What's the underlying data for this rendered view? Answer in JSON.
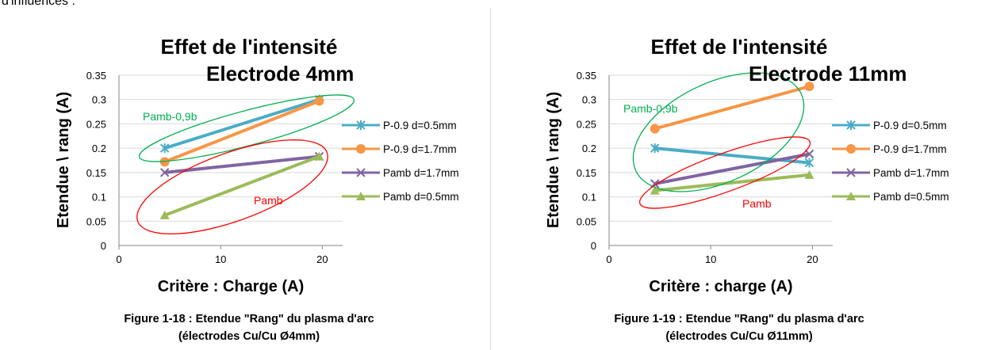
{
  "header_snippet": "d'influences :",
  "chart_data": [
    {
      "type": "line",
      "title": "Effet de l'intensité",
      "subtitle": "Electrode 4mm",
      "xlabel": "Critère : Charge (A)",
      "ylabel": "Etendue \\ rang (A)",
      "xlim": [
        0,
        22
      ],
      "ylim": [
        0,
        0.35
      ],
      "xticks": [
        "0",
        "10",
        "20"
      ],
      "yticks": [
        "0",
        "0.05",
        "0.1",
        "0.15",
        "0.2",
        "0.25",
        "0.3",
        "0.35"
      ],
      "grid": true,
      "legend_position": "right",
      "series": [
        {
          "name": "P-0.9 d=0.5mm",
          "color": "#4BACC6",
          "marker": "star",
          "x": [
            4.5,
            19.7
          ],
          "y": [
            0.2,
            0.3
          ]
        },
        {
          "name": "P-0.9 d=1.7mm",
          "color": "#F79646",
          "marker": "circle",
          "x": [
            4.5,
            19.7
          ],
          "y": [
            0.172,
            0.297
          ]
        },
        {
          "name": "Pamb d=1.7mm",
          "color": "#8064A2",
          "marker": "x",
          "x": [
            4.5,
            19.7
          ],
          "y": [
            0.15,
            0.183
          ]
        },
        {
          "name": "Pamb d=0.5mm",
          "color": "#9BBB59",
          "marker": "triangle",
          "x": [
            4.5,
            19.7
          ],
          "y": [
            0.062,
            0.183
          ]
        }
      ],
      "annotations": [
        {
          "text": "Pamb-0,9b",
          "color": "#00B050"
        },
        {
          "text": "Pamb",
          "color": "#FF0000"
        }
      ],
      "caption_line1": "Figure 1-18 : Etendue \"Rang\" du plasma d'arc",
      "caption_line2": "(électrodes Cu/Cu Ø4mm)"
    },
    {
      "type": "line",
      "title": "Effet de l'intensité",
      "subtitle": "Electrode 11mm",
      "xlabel": "Critère : charge (A)",
      "ylabel": "Etendue \\ rang (A)",
      "xlim": [
        0,
        22
      ],
      "ylim": [
        0,
        0.35
      ],
      "xticks": [
        "0",
        "10",
        "20"
      ],
      "yticks": [
        "0",
        "0.05",
        "0.1",
        "0.15",
        "0.2",
        "0.25",
        "0.3",
        "0.35"
      ],
      "grid": true,
      "legend_position": "right",
      "series": [
        {
          "name": "P-0.9 d=0.5mm",
          "color": "#4BACC6",
          "marker": "star",
          "x": [
            4.5,
            19.7
          ],
          "y": [
            0.2,
            0.17
          ]
        },
        {
          "name": "P-0.9 d=1.7mm",
          "color": "#F79646",
          "marker": "circle",
          "x": [
            4.5,
            19.7
          ],
          "y": [
            0.24,
            0.327
          ]
        },
        {
          "name": "Pamb d=1.7mm",
          "color": "#8064A2",
          "marker": "x",
          "x": [
            4.5,
            19.7
          ],
          "y": [
            0.127,
            0.188
          ]
        },
        {
          "name": "Pamb d=0.5mm",
          "color": "#9BBB59",
          "marker": "triangle",
          "x": [
            4.5,
            19.7
          ],
          "y": [
            0.113,
            0.145
          ]
        }
      ],
      "annotations": [
        {
          "text": "Pamb-0,9b",
          "color": "#00B050"
        },
        {
          "text": "Pamb",
          "color": "#FF0000"
        }
      ],
      "caption_line1": "Figure 1-19 : Etendue \"Rang\" du plasma d'arc",
      "caption_line2": "(électrodes Cu/Cu Ø11mm)"
    }
  ]
}
